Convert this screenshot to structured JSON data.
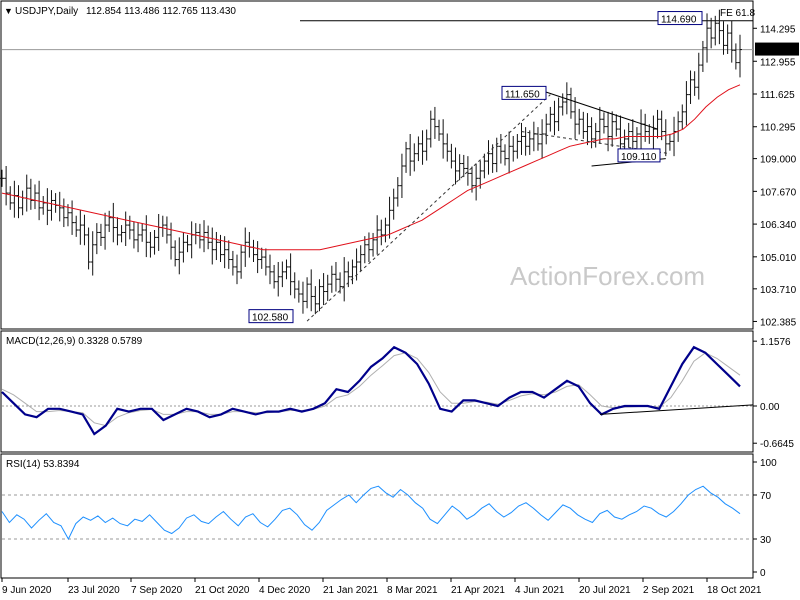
{
  "chart_data": {
    "type": "candlestick",
    "symbol_label": "USDJPY,Daily",
    "ohlc_label": "112.854 113.486 112.765 113.430",
    "watermark": "ActionForex.com",
    "x_ticks": [
      "9 Jun 2020",
      "23 Jul 2020",
      "7 Sep 2020",
      "21 Oct 2020",
      "4 Dec 2020",
      "21 Jan 2021",
      "8 Mar 2021",
      "21 Apr 2021",
      "4 Jun 2021",
      "20 Jul 2021",
      "2 Sep 2021",
      "18 Oct 2021"
    ],
    "price_panel": {
      "y_ticks": [
        "114.295",
        "112.955",
        "111.625",
        "110.295",
        "109.000",
        "107.670",
        "106.340",
        "105.010",
        "103.710",
        "102.385"
      ],
      "ylim": [
        102.2,
        115.2
      ],
      "last_price_label": "113.430",
      "last_price": 113.43,
      "annotations": [
        {
          "text": "114.690",
          "value": 114.69
        },
        {
          "text": "111.650",
          "value": 111.65
        },
        {
          "text": "109.110",
          "value": 109.11
        },
        {
          "text": "102.580",
          "value": 102.58
        }
      ],
      "fe_label": "FE 61.8",
      "fe_level": 114.6,
      "series": [
        {
          "name": "price",
          "values": [
            108.2,
            107.6,
            107.2,
            107.5,
            107.0,
            107.4,
            107.8,
            107.3,
            107.6,
            107.0,
            107.2,
            106.9,
            107.3,
            107.1,
            107.0,
            106.6,
            106.8,
            106.4,
            106.1,
            106.3,
            105.9,
            104.8,
            105.5,
            106.0,
            105.8,
            106.3,
            106.6,
            106.2,
            105.9,
            106.0,
            106.3,
            106.1,
            105.7,
            105.9,
            106.1,
            105.6,
            105.4,
            105.8,
            106.2,
            106.3,
            105.9,
            105.4,
            104.9,
            105.2,
            105.6,
            105.5,
            105.9,
            106.0,
            105.7,
            106.0,
            105.6,
            105.3,
            105.6,
            105.1,
            105.3,
            104.9,
            104.6,
            104.4,
            105.2,
            105.6,
            105.4,
            105.1,
            104.9,
            105.0,
            104.6,
            104.4,
            104.0,
            104.2,
            104.4,
            104.6,
            104.0,
            103.7,
            103.5,
            103.2,
            103.9,
            103.4,
            103.1,
            103.8,
            103.6,
            103.9,
            104.3,
            104.1,
            103.8,
            104.4,
            104.2,
            104.6,
            104.8,
            105.1,
            105.5,
            105.3,
            105.7,
            106.1,
            105.9,
            106.3,
            106.9,
            107.4,
            107.9,
            108.7,
            109.4,
            108.9,
            109.2,
            109.6,
            109.3,
            109.8,
            110.6,
            110.3,
            110.0,
            109.6,
            109.3,
            108.9,
            108.5,
            108.8,
            108.6,
            108.4,
            107.9,
            108.2,
            108.5,
            108.9,
            109.2,
            108.8,
            109.5,
            109.3,
            109.0,
            109.5,
            109.3,
            109.7,
            109.9,
            109.5,
            109.8,
            110.0,
            109.6,
            110.0,
            110.4,
            110.8,
            110.5,
            111.1,
            111.3,
            111.6,
            110.9,
            110.4,
            110.6,
            110.1,
            110.3,
            109.8,
            110.1,
            110.6,
            110.3,
            109.9,
            110.5,
            110.2,
            109.6,
            109.8,
            110.1,
            109.7,
            110.0,
            110.4,
            110.1,
            109.9,
            110.2,
            110.6,
            110.1,
            109.6,
            109.7,
            110.1,
            110.5,
            110.9,
            111.6,
            112.2,
            111.9,
            112.8,
            113.5,
            114.3,
            113.9,
            114.5,
            114.2,
            113.6,
            114.1,
            113.4,
            112.9,
            113.43
          ]
        },
        {
          "name": "ma",
          "values": [
            107.6,
            107.5,
            107.4,
            107.3,
            107.2,
            107.1,
            107.0,
            106.9,
            106.8,
            106.7,
            106.6,
            106.5,
            106.4,
            106.3,
            106.2,
            106.1,
            106.0,
            105.9,
            105.8,
            105.7,
            105.6,
            105.5,
            105.4,
            105.3,
            105.3,
            105.3,
            105.3,
            105.3,
            105.3,
            105.4,
            105.5,
            105.6,
            105.7,
            105.8,
            105.9,
            106.1,
            106.3,
            106.5,
            106.8,
            107.1,
            107.4,
            107.7,
            107.9,
            108.1,
            108.3,
            108.5,
            108.7,
            108.9,
            109.1,
            109.3,
            109.5,
            109.6,
            109.7,
            109.8,
            109.8,
            109.9,
            109.9,
            109.9,
            109.9,
            110.0,
            110.2,
            110.6,
            111.1,
            111.5,
            111.8,
            112.0
          ]
        }
      ]
    },
    "macd_panel": {
      "label": "MACD(12,26,9) 0.3328 0.5789",
      "y_ticks": [
        "1.1576",
        "0.00",
        "-0.6645"
      ],
      "ylim": [
        -0.75,
        1.25
      ],
      "last_value_label": "0.00",
      "series": [
        {
          "name": "macd",
          "values": [
            0.25,
            0.05,
            -0.15,
            -0.2,
            -0.05,
            -0.05,
            -0.1,
            -0.15,
            -0.5,
            -0.35,
            -0.05,
            -0.1,
            -0.05,
            -0.05,
            -0.25,
            -0.15,
            -0.05,
            -0.1,
            -0.2,
            -0.15,
            -0.05,
            -0.1,
            -0.15,
            -0.1,
            -0.1,
            -0.05,
            -0.1,
            -0.05,
            0.05,
            0.3,
            0.25,
            0.45,
            0.7,
            0.85,
            1.05,
            0.95,
            0.75,
            0.4,
            -0.05,
            -0.1,
            0.1,
            0.1,
            0.05,
            0.0,
            0.15,
            0.25,
            0.25,
            0.15,
            0.3,
            0.45,
            0.35,
            0.05,
            -0.15,
            -0.05,
            0.0,
            0.0,
            0.0,
            -0.05,
            0.35,
            0.75,
            1.05,
            0.95,
            0.75,
            0.55,
            0.35
          ]
        },
        {
          "name": "signal",
          "values": [
            0.3,
            0.2,
            0.05,
            -0.1,
            -0.1,
            -0.08,
            -0.1,
            -0.12,
            -0.3,
            -0.35,
            -0.2,
            -0.12,
            -0.08,
            -0.06,
            -0.15,
            -0.15,
            -0.1,
            -0.1,
            -0.15,
            -0.15,
            -0.1,
            -0.1,
            -0.12,
            -0.12,
            -0.1,
            -0.08,
            -0.08,
            -0.06,
            0.0,
            0.15,
            0.2,
            0.35,
            0.55,
            0.72,
            0.9,
            0.95,
            0.85,
            0.6,
            0.25,
            0.05,
            0.05,
            0.08,
            0.07,
            0.03,
            0.1,
            0.18,
            0.22,
            0.2,
            0.25,
            0.35,
            0.38,
            0.2,
            0.0,
            -0.03,
            -0.02,
            -0.01,
            0.0,
            -0.02,
            0.15,
            0.45,
            0.8,
            0.95,
            0.85,
            0.7,
            0.55
          ]
        }
      ]
    },
    "rsi_panel": {
      "label": "RSI(14) 53.8394",
      "y_ticks": [
        "100",
        "70",
        "30",
        "0"
      ],
      "ylim": [
        0,
        100
      ],
      "series": [
        {
          "name": "rsi",
          "values": [
            55,
            45,
            52,
            48,
            40,
            47,
            53,
            45,
            42,
            30,
            44,
            50,
            47,
            51,
            45,
            49,
            44,
            42,
            48,
            46,
            52,
            45,
            38,
            35,
            40,
            49,
            52,
            46,
            44,
            50,
            55,
            48,
            42,
            50,
            53,
            45,
            41,
            48,
            56,
            58,
            52,
            43,
            38,
            45,
            56,
            61,
            66,
            70,
            63,
            70,
            76,
            78,
            72,
            68,
            75,
            70,
            63,
            58,
            48,
            44,
            52,
            60,
            55,
            48,
            52,
            58,
            62,
            55,
            50,
            54,
            60,
            63,
            58,
            52,
            47,
            54,
            61,
            58,
            52,
            48,
            45,
            53,
            56,
            50,
            48,
            52,
            55,
            60,
            58,
            53,
            50,
            55,
            62,
            70,
            75,
            78,
            72,
            68,
            62,
            58,
            53
          ]
        }
      ]
    }
  }
}
